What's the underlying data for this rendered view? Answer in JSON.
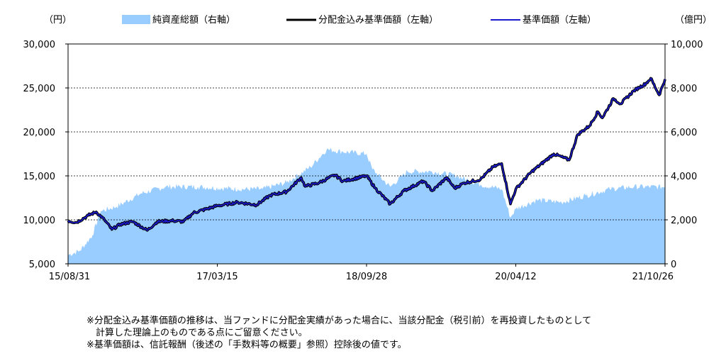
{
  "chart_data": {
    "type": "area+line",
    "left_unit": "（円）",
    "right_unit": "（億円）",
    "legend": [
      {
        "label": "純資産総額（右軸）",
        "kind": "area",
        "color": "#99ccff"
      },
      {
        "label": "分配金込み基準価額（左軸）",
        "kind": "line",
        "color": "#000000"
      },
      {
        "label": "基準価額（左軸）",
        "kind": "line",
        "color": "#1a1acc"
      }
    ],
    "x_ticks": [
      "15/08/31",
      "17/03/15",
      "18/09/28",
      "20/04/12",
      "21/10/26"
    ],
    "x_range": [
      "2015-08-31",
      "2021-10-26"
    ],
    "y_left_ticks": [
      "5,000",
      "10,000",
      "15,000",
      "20,000",
      "25,000",
      "30,000"
    ],
    "y_left_range": [
      5000,
      30000
    ],
    "y_right_ticks": [
      "0",
      "2,000",
      "4,000",
      "6,000",
      "8,000",
      "10,000"
    ],
    "y_right_range": [
      0,
      10000
    ],
    "grid": "horizontal dotted",
    "nav_series": {
      "name": "基準価額（左軸）",
      "points": [
        [
          "2015-08-31",
          9900
        ],
        [
          "2015-10-01",
          9700
        ],
        [
          "2015-11-15",
          10500
        ],
        [
          "2015-12-15",
          10900
        ],
        [
          "2016-01-15",
          10000
        ],
        [
          "2016-02-12",
          8900
        ],
        [
          "2016-03-15",
          9500
        ],
        [
          "2016-05-01",
          9800
        ],
        [
          "2016-06-24",
          8800
        ],
        [
          "2016-08-01",
          9800
        ],
        [
          "2016-10-01",
          9900
        ],
        [
          "2016-11-08",
          9800
        ],
        [
          "2016-12-15",
          10800
        ],
        [
          "2017-03-15",
          11600
        ],
        [
          "2017-06-01",
          12000
        ],
        [
          "2017-08-10",
          11700
        ],
        [
          "2017-10-01",
          12800
        ],
        [
          "2017-12-01",
          13200
        ],
        [
          "2018-01-25",
          14800
        ],
        [
          "2018-02-09",
          13800
        ],
        [
          "2018-04-01",
          14200
        ],
        [
          "2018-06-01",
          15100
        ],
        [
          "2018-07-01",
          14400
        ],
        [
          "2018-09-28",
          15000
        ],
        [
          "2018-10-31",
          13600
        ],
        [
          "2018-12-26",
          11800
        ],
        [
          "2019-02-15",
          13300
        ],
        [
          "2019-04-30",
          14400
        ],
        [
          "2019-06-03",
          13300
        ],
        [
          "2019-07-26",
          14800
        ],
        [
          "2019-08-26",
          13600
        ],
        [
          "2019-10-01",
          14200
        ],
        [
          "2019-12-01",
          14600
        ],
        [
          "2020-01-17",
          16000
        ],
        [
          "2020-02-19",
          16400
        ],
        [
          "2020-03-23",
          11800
        ],
        [
          "2020-04-12",
          13500
        ],
        [
          "2020-06-08",
          15400
        ],
        [
          "2020-09-02",
          17500
        ],
        [
          "2020-10-30",
          16800
        ],
        [
          "2020-12-01",
          19700
        ],
        [
          "2021-01-15",
          20700
        ],
        [
          "2021-02-15",
          22300
        ],
        [
          "2021-03-04",
          21600
        ],
        [
          "2021-04-15",
          23800
        ],
        [
          "2021-05-12",
          23200
        ],
        [
          "2021-07-01",
          24700
        ],
        [
          "2021-08-15",
          25500
        ],
        [
          "2021-09-02",
          26100
        ],
        [
          "2021-10-04",
          24200
        ],
        [
          "2021-10-26",
          26000
        ]
      ]
    },
    "nav_with_distributions_series": {
      "name": "分配金込み基準価額（左軸）",
      "points": [
        [
          "2015-08-31",
          9900
        ],
        [
          "2015-10-01",
          9700
        ],
        [
          "2015-11-15",
          10500
        ],
        [
          "2015-12-15",
          10900
        ],
        [
          "2016-01-15",
          10000
        ],
        [
          "2016-02-12",
          8900
        ],
        [
          "2016-03-15",
          9500
        ],
        [
          "2016-05-01",
          9800
        ],
        [
          "2016-06-24",
          8800
        ],
        [
          "2016-08-01",
          9800
        ],
        [
          "2016-10-01",
          9900
        ],
        [
          "2016-11-08",
          9800
        ],
        [
          "2016-12-15",
          10800
        ],
        [
          "2017-03-15",
          11600
        ],
        [
          "2017-06-01",
          12000
        ],
        [
          "2017-08-10",
          11700
        ],
        [
          "2017-10-01",
          12800
        ],
        [
          "2017-12-01",
          13200
        ],
        [
          "2018-01-25",
          14800
        ],
        [
          "2018-02-09",
          13800
        ],
        [
          "2018-04-01",
          14200
        ],
        [
          "2018-06-01",
          15100
        ],
        [
          "2018-07-01",
          14400
        ],
        [
          "2018-09-28",
          15000
        ],
        [
          "2018-10-31",
          13600
        ],
        [
          "2018-12-26",
          11800
        ],
        [
          "2019-02-15",
          13300
        ],
        [
          "2019-04-30",
          14400
        ],
        [
          "2019-06-03",
          13300
        ],
        [
          "2019-07-26",
          14800
        ],
        [
          "2019-08-26",
          13600
        ],
        [
          "2019-10-01",
          14200
        ],
        [
          "2019-12-01",
          14600
        ],
        [
          "2020-01-17",
          16000
        ],
        [
          "2020-02-19",
          16400
        ],
        [
          "2020-03-23",
          11800
        ],
        [
          "2020-04-12",
          13500
        ],
        [
          "2020-06-08",
          15400
        ],
        [
          "2020-09-02",
          17500
        ],
        [
          "2020-10-30",
          16800
        ],
        [
          "2020-12-01",
          19700
        ],
        [
          "2021-01-15",
          20700
        ],
        [
          "2021-02-15",
          22300
        ],
        [
          "2021-03-04",
          21600
        ],
        [
          "2021-04-15",
          23800
        ],
        [
          "2021-05-12",
          23200
        ],
        [
          "2021-07-01",
          24700
        ],
        [
          "2021-08-15",
          25500
        ],
        [
          "2021-09-02",
          26100
        ],
        [
          "2021-10-04",
          24200
        ],
        [
          "2021-10-26",
          26000
        ]
      ]
    },
    "aum_series": {
      "name": "純資産総額（右軸）",
      "points": [
        [
          "2015-08-31",
          400
        ],
        [
          "2015-10-15",
          600
        ],
        [
          "2015-12-01",
          1300
        ],
        [
          "2016-01-01",
          2400
        ],
        [
          "2016-03-01",
          2600
        ],
        [
          "2016-06-01",
          3200
        ],
        [
          "2016-09-01",
          3500
        ],
        [
          "2017-01-01",
          3500
        ],
        [
          "2017-06-01",
          3400
        ],
        [
          "2017-09-01",
          3400
        ],
        [
          "2017-12-01",
          3700
        ],
        [
          "2018-03-01",
          4400
        ],
        [
          "2018-05-01",
          5200
        ],
        [
          "2018-07-01",
          5100
        ],
        [
          "2018-09-28",
          5000
        ],
        [
          "2018-10-20",
          4300
        ],
        [
          "2018-12-26",
          3500
        ],
        [
          "2019-03-01",
          4200
        ],
        [
          "2019-06-01",
          4200
        ],
        [
          "2019-09-01",
          4000
        ],
        [
          "2019-12-01",
          3600
        ],
        [
          "2020-02-19",
          3400
        ],
        [
          "2020-03-23",
          2100
        ],
        [
          "2020-04-12",
          2500
        ],
        [
          "2020-07-01",
          2900
        ],
        [
          "2020-10-01",
          2800
        ],
        [
          "2021-01-01",
          3100
        ],
        [
          "2021-04-01",
          3400
        ],
        [
          "2021-07-01",
          3500
        ],
        [
          "2021-10-26",
          3500
        ]
      ]
    }
  },
  "notes": [
    "※分配金込み基準価額の推移は、当ファンドに分配金実績があった場合に、当該分配金（税引前）を再投資したものとして",
    "　計算した理論上のものである点にご留意ください。",
    "※基準価額は、信託報酬（後述の「手数料等の概要」参照）控除後の値です。"
  ]
}
